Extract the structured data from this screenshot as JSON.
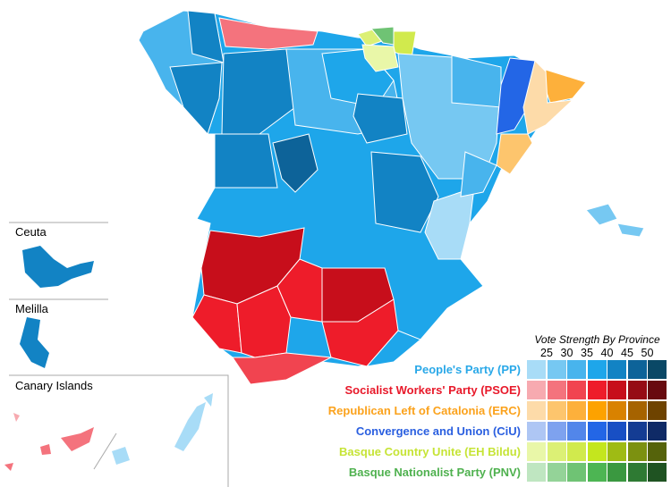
{
  "legend": {
    "title": "Vote Strength By Province",
    "ticks": [
      "25",
      "30",
      "35",
      "40",
      "45",
      "50"
    ],
    "parties": [
      {
        "label": "People's Party (PP)",
        "color": "#29a8e8",
        "shades": [
          "#a8dcf7",
          "#76c8f2",
          "#48b4ed",
          "#1ea6ea",
          "#1283c4",
          "#0d6399",
          "#0a4866"
        ]
      },
      {
        "label": "Socialist Workers' Party (PSOE)",
        "color": "#e8192a",
        "shades": [
          "#f7aab0",
          "#f4737d",
          "#f14450",
          "#ee1c2a",
          "#c70e1b",
          "#960c15",
          "#680a0f"
        ]
      },
      {
        "label": "Republican Left of Catalonia (ERC)",
        "color": "#fba21c",
        "shades": [
          "#fddba9",
          "#fdc56d",
          "#fdb03b",
          "#fda200",
          "#d98200",
          "#a66300",
          "#6e4300"
        ]
      },
      {
        "label": "Convergence and Union (CiU)",
        "color": "#2a5fe0",
        "shades": [
          "#aec6f4",
          "#7ea2ef",
          "#5286ea",
          "#2366e6",
          "#184fc4",
          "#143c93",
          "#0f2a66"
        ]
      },
      {
        "label": "Basque Country Unite (EH Bildu)",
        "color": "#c6e436",
        "shades": [
          "#e9f7a8",
          "#dcf075",
          "#d1ea4d",
          "#c4e61e",
          "#9fbb14",
          "#7c9110",
          "#55630b"
        ]
      },
      {
        "label": "Basque Nationalist Party (PNV)",
        "color": "#4fb14f",
        "shades": [
          "#bfe6c1",
          "#94d398",
          "#6fc374",
          "#4db553",
          "#3a9840",
          "#2e7a33",
          "#1f5322"
        ]
      }
    ]
  },
  "insets": {
    "ceuta": "Ceuta",
    "melilla": "Melilla",
    "canary": "Canary Islands"
  }
}
